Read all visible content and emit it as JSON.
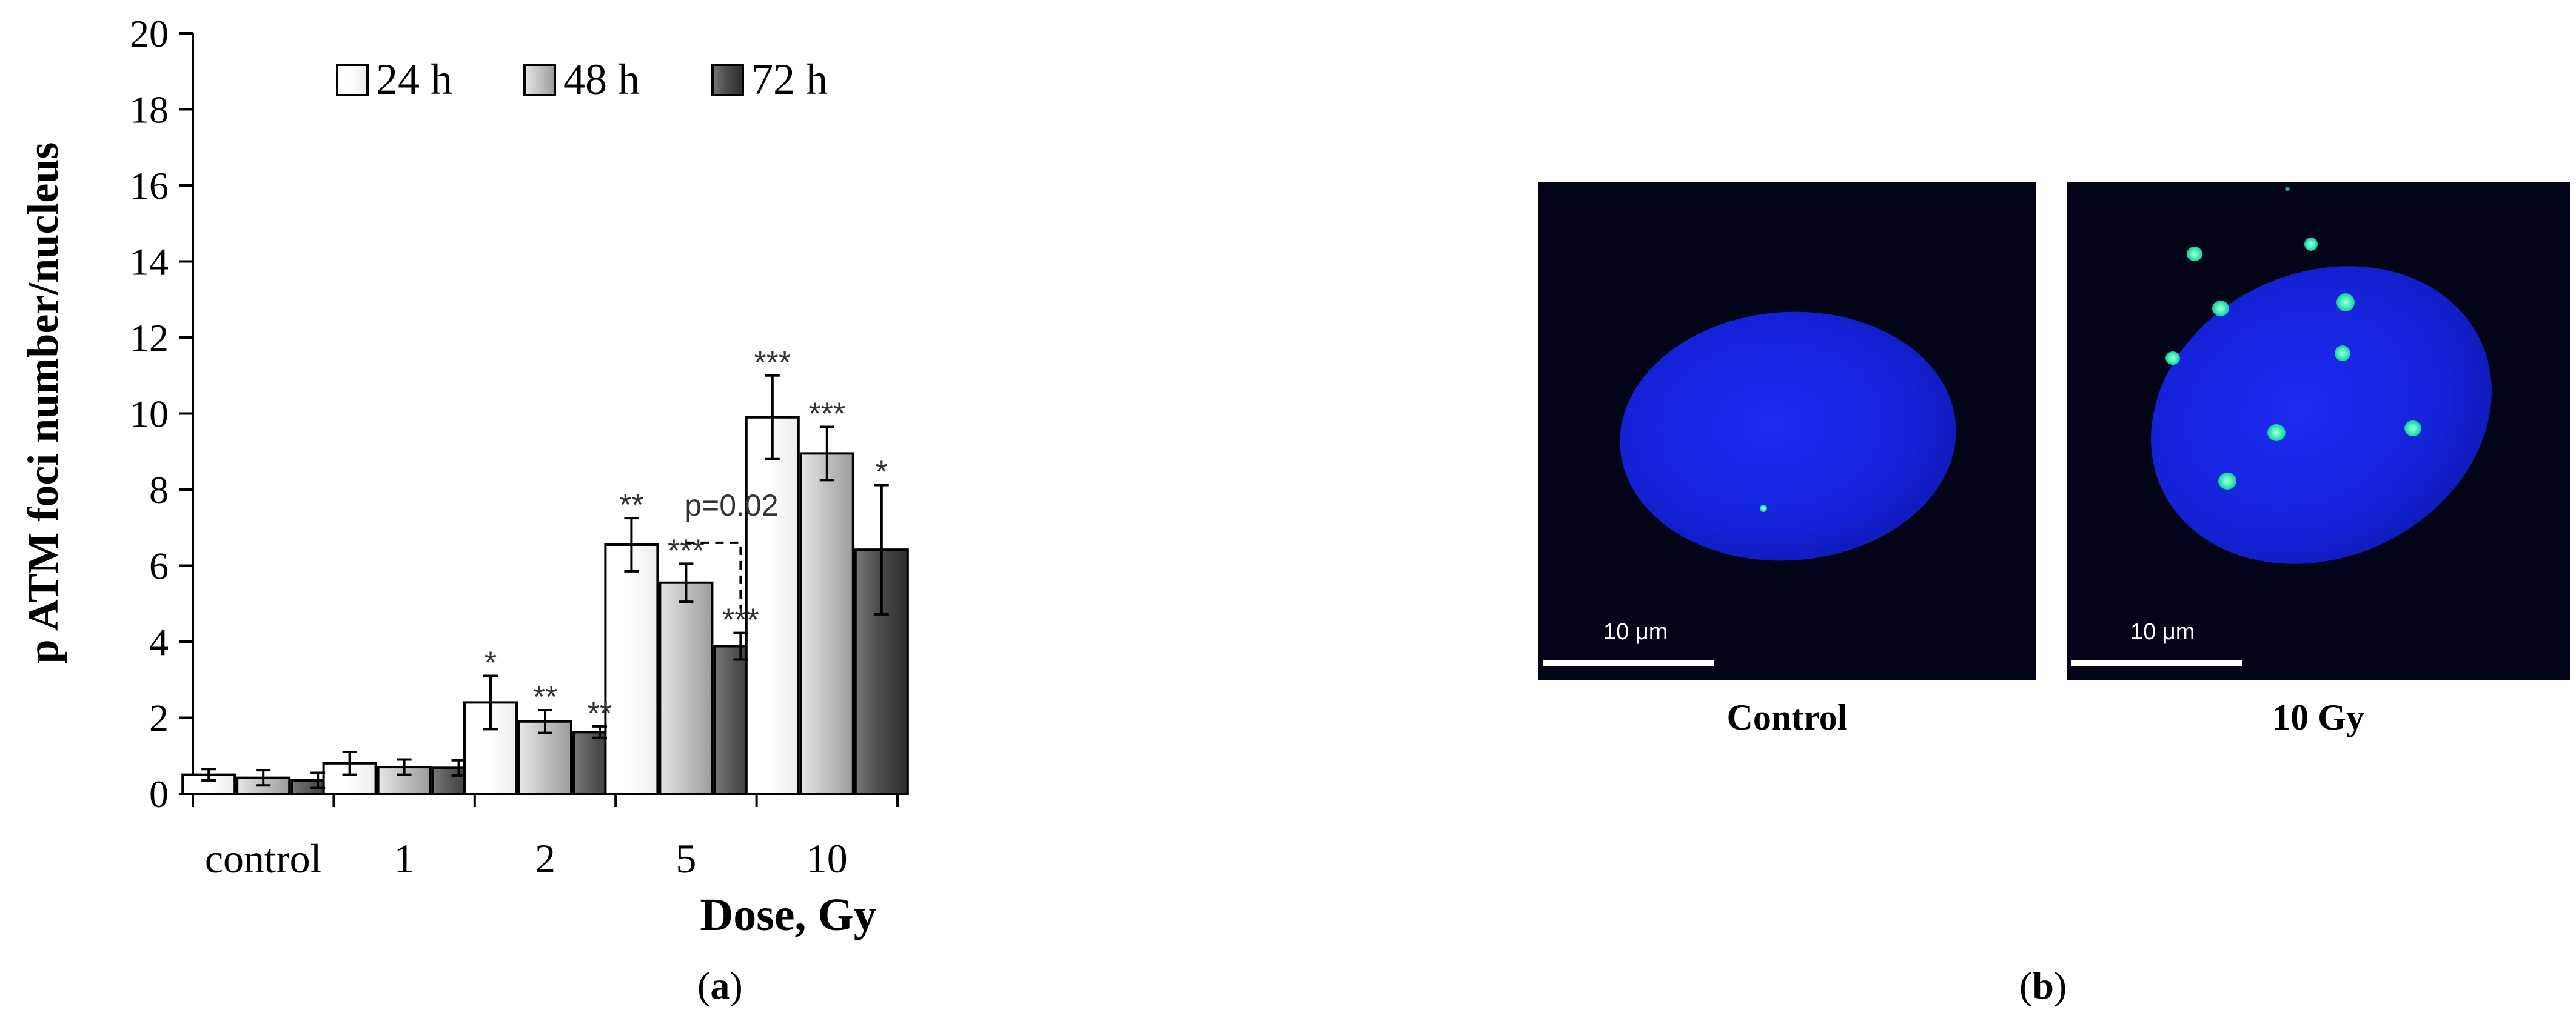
{
  "chart_data": {
    "type": "bar",
    "ylabel": "p ATM foci number/nucleus",
    "xlabel": "Dose, Gy",
    "ylim": [
      0,
      20
    ],
    "yticks": [
      0,
      2,
      4,
      6,
      8,
      10,
      12,
      14,
      16,
      18,
      20
    ],
    "categories": [
      "control",
      "1",
      "2",
      "5",
      "10"
    ],
    "legend_position": "top-left",
    "grid": false,
    "series": [
      {
        "name": "24 h",
        "color": "#ffffff",
        "values": [
          0.5,
          0.8,
          2.4,
          6.55,
          9.9
        ],
        "errors": [
          0.15,
          0.3,
          0.7,
          0.7,
          1.1
        ],
        "significance": [
          "",
          "",
          "*",
          "**",
          "***"
        ]
      },
      {
        "name": "48 h",
        "color": "#c4c4c4",
        "values": [
          0.42,
          0.7,
          1.9,
          5.55,
          8.95
        ],
        "errors": [
          0.2,
          0.2,
          0.3,
          0.5,
          0.7
        ],
        "significance": [
          "",
          "",
          "**",
          "***",
          "***"
        ]
      },
      {
        "name": "72 h",
        "color": "#4d4d4d",
        "values": [
          0.35,
          0.68,
          1.62,
          3.88,
          6.42
        ],
        "errors": [
          0.2,
          0.2,
          0.15,
          0.35,
          1.7
        ],
        "significance": [
          "",
          "",
          "**",
          "***",
          "*"
        ]
      }
    ],
    "annotations": [
      {
        "text": "p=0.02",
        "category": "5",
        "between": [
          "48 h",
          "72 h"
        ],
        "y": 6.6
      }
    ]
  },
  "figure": {
    "panel_a_label": "a",
    "panel_b_label": "b",
    "images": [
      {
        "caption": "Control",
        "scale_bar": "10 μm",
        "foci": 1
      },
      {
        "caption": "10 Gy",
        "scale_bar": "10 μm",
        "foci": 9
      }
    ],
    "colors": {
      "nucleus": "#1422d8",
      "foci": "#33f0b0",
      "background": "#020418"
    }
  }
}
